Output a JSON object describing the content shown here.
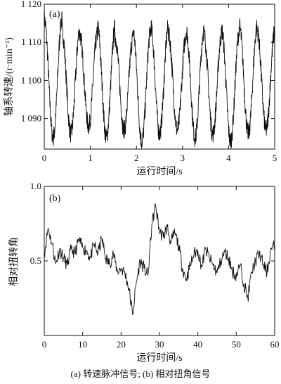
{
  "caption": "(a) 转速脉冲信号; (b) 相对扭角信号",
  "chart_data": [
    {
      "type": "line",
      "panel_label": "(a)",
      "xlabel": "运行时间/s",
      "ylabel": "轴系转速/(r·min⁻¹)",
      "xlim": [
        0,
        5
      ],
      "ylim": [
        1082,
        1120
      ],
      "xticks": [
        0,
        1,
        2,
        3,
        4,
        5
      ],
      "xtick_labels": [
        "0",
        "1",
        "2",
        "3",
        "4",
        "5"
      ],
      "yticks": [
        1090,
        1100,
        1110,
        1120
      ],
      "ytick_labels": [
        "1 090",
        "1 100",
        "1 110",
        "1 120"
      ],
      "signal": {
        "kind": "periodic",
        "period_s": 0.385,
        "mean": 1100,
        "amplitude": 12.5,
        "noise_amplitude": 2.5,
        "peak_values": [
          1116,
          1113,
          1112,
          1114,
          1111,
          1113,
          1114,
          1112,
          1113,
          1112,
          1113,
          1114,
          1113,
          1112
        ],
        "trough_values": [
          1085,
          1086,
          1088,
          1085,
          1087,
          1084,
          1086,
          1087,
          1085,
          1086,
          1084,
          1086,
          1087
        ]
      },
      "grid": false
    },
    {
      "type": "line",
      "panel_label": "(b)",
      "xlabel": "运行时间/s",
      "ylabel": "相对扭转角",
      "xlim": [
        0,
        60
      ],
      "ylim": [
        0.0,
        1.0
      ],
      "xticks": [
        0,
        10,
        20,
        30,
        40,
        50,
        60
      ],
      "xtick_labels": [
        "0",
        "10",
        "20",
        "30",
        "40",
        "50",
        "60"
      ],
      "yticks": [
        0.5,
        1.0
      ],
      "ytick_labels": [
        "0.5",
        "1.0"
      ],
      "x": [
        0,
        1,
        2,
        3,
        4,
        5,
        6,
        7,
        8,
        9,
        10,
        11,
        12,
        13,
        14,
        15,
        16,
        17,
        18,
        19,
        20,
        21,
        22,
        23,
        24,
        25,
        26,
        27,
        28,
        29,
        30,
        31,
        32,
        33,
        34,
        35,
        36,
        37,
        38,
        39,
        40,
        41,
        42,
        43,
        44,
        45,
        46,
        47,
        48,
        49,
        50,
        51,
        52,
        53,
        54,
        55,
        56,
        57,
        58,
        59,
        60
      ],
      "y": [
        0.55,
        0.72,
        0.62,
        0.48,
        0.58,
        0.52,
        0.47,
        0.58,
        0.55,
        0.64,
        0.59,
        0.57,
        0.52,
        0.61,
        0.55,
        0.65,
        0.52,
        0.48,
        0.55,
        0.43,
        0.45,
        0.42,
        0.32,
        0.14,
        0.36,
        0.5,
        0.45,
        0.4,
        0.74,
        0.87,
        0.7,
        0.66,
        0.73,
        0.62,
        0.69,
        0.6,
        0.45,
        0.38,
        0.47,
        0.55,
        0.57,
        0.46,
        0.58,
        0.52,
        0.47,
        0.42,
        0.5,
        0.56,
        0.52,
        0.43,
        0.4,
        0.47,
        0.35,
        0.25,
        0.42,
        0.5,
        0.55,
        0.48,
        0.42,
        0.58,
        0.6
      ],
      "grid": false
    }
  ]
}
